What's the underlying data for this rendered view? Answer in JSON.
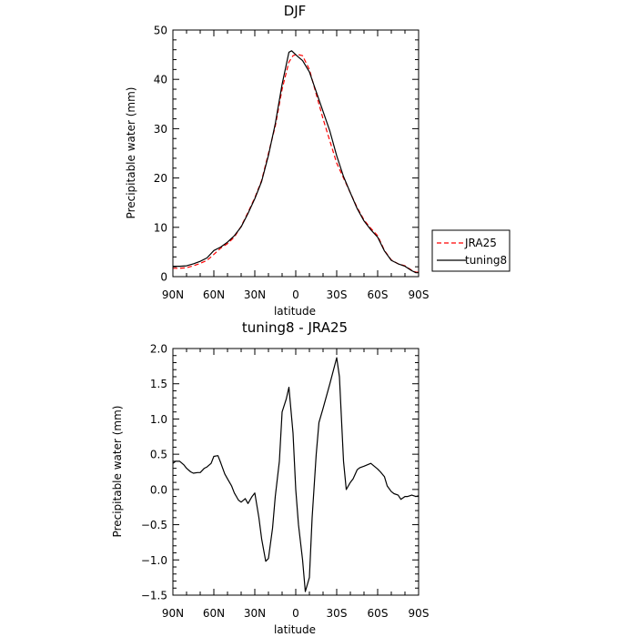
{
  "chart_data": [
    {
      "type": "line",
      "title": "DJF",
      "xlabel": "latitude",
      "ylabel": "Precipitable water (mm)",
      "xlim": [
        90,
        -90
      ],
      "ylim": [
        0,
        50
      ],
      "x_ticks": [
        90,
        60,
        30,
        0,
        -30,
        -60,
        -90
      ],
      "x_tick_labels": [
        "90N",
        "60N",
        "30N",
        "0",
        "30S",
        "60S",
        "90S"
      ],
      "y_ticks": [
        0,
        10,
        20,
        30,
        40,
        50
      ],
      "y_tick_labels": [
        "0",
        "10",
        "20",
        "30",
        "40",
        "50"
      ],
      "legend_position": "right",
      "series": [
        {
          "name": "JRA25",
          "color": "#ff0000",
          "dash": "dashed",
          "x": [
            90,
            85,
            80,
            75,
            70,
            65,
            60,
            55,
            50,
            45,
            40,
            35,
            30,
            25,
            20,
            15,
            10,
            5,
            2,
            0,
            -2,
            -5,
            -10,
            -15,
            -20,
            -25,
            -30,
            -35,
            -40,
            -45,
            -50,
            -55,
            -60,
            -65,
            -70,
            -75,
            -80,
            -85,
            -88,
            -90
          ],
          "y": [
            1.7,
            1.7,
            1.8,
            2.2,
            2.7,
            3.3,
            4.5,
            5.8,
            6.7,
            8.0,
            10.2,
            13.0,
            16.0,
            19.5,
            25.0,
            30.5,
            38.0,
            43.5,
            44.8,
            45.0,
            45.0,
            44.8,
            42.0,
            37.0,
            32.0,
            27.5,
            23.0,
            20.0,
            17.0,
            14.0,
            11.5,
            9.8,
            8.3,
            5.3,
            3.4,
            2.6,
            2.2,
            1.3,
            0.9,
            0.9
          ]
        },
        {
          "name": "tuning8",
          "color": "#000000",
          "dash": "solid",
          "x": [
            90,
            85,
            80,
            75,
            70,
            65,
            60,
            55,
            50,
            45,
            40,
            35,
            30,
            25,
            20,
            15,
            10,
            5,
            3,
            0,
            -2,
            -5,
            -10,
            -15,
            -20,
            -25,
            -30,
            -35,
            -40,
            -45,
            -50,
            -55,
            -60,
            -65,
            -70,
            -75,
            -80,
            -85,
            -88,
            -90
          ],
          "y": [
            2.1,
            2.1,
            2.2,
            2.6,
            3.1,
            3.8,
            5.3,
            6.0,
            7.0,
            8.3,
            10.1,
            12.8,
            15.8,
            19.3,
            24.6,
            31.0,
            39.0,
            45.5,
            45.8,
            45.0,
            44.5,
            43.8,
            41.5,
            37.5,
            33.5,
            29.5,
            24.5,
            20.3,
            17.0,
            13.8,
            11.3,
            9.5,
            8.0,
            5.2,
            3.3,
            2.6,
            2.1,
            1.2,
            0.8,
            0.8
          ]
        }
      ]
    },
    {
      "type": "line",
      "title": "tuning8 - JRA25",
      "xlabel": "latitude",
      "ylabel": "Precipitable water (mm)",
      "xlim": [
        90,
        -90
      ],
      "ylim": [
        -1.5,
        2.0
      ],
      "x_ticks": [
        90,
        60,
        30,
        0,
        -30,
        -60,
        -90
      ],
      "x_tick_labels": [
        "90N",
        "60N",
        "30N",
        "0",
        "30S",
        "60S",
        "90S"
      ],
      "y_ticks": [
        -1.5,
        -1.0,
        -0.5,
        0.0,
        0.5,
        1.0,
        1.5,
        2.0
      ],
      "y_tick_labels": [
        "−1.5",
        "−1.0",
        "−0.5",
        "0.0",
        "0.5",
        "1.0",
        "1.5",
        "2.0"
      ],
      "series": [
        {
          "color": "#000000",
          "dash": "solid",
          "x": [
            90,
            88,
            85,
            82,
            80,
            77,
            75,
            72,
            70,
            67,
            65,
            62,
            60,
            57,
            55,
            52,
            50,
            47,
            45,
            42,
            40,
            37,
            35,
            32,
            30,
            27,
            25,
            22,
            20,
            17,
            15,
            12,
            10,
            7,
            5,
            2,
            0,
            -2,
            -5,
            -7,
            -10,
            -12,
            -15,
            -17,
            -20,
            -25,
            -30,
            -32,
            -35,
            -37,
            -40,
            -42,
            -45,
            -47,
            -50,
            -55,
            -60,
            -62,
            -65,
            -67,
            -70,
            -72,
            -75,
            -77,
            -80,
            -82,
            -85,
            -88,
            -90
          ],
          "y": [
            0.37,
            0.4,
            0.4,
            0.35,
            0.3,
            0.25,
            0.23,
            0.24,
            0.24,
            0.3,
            0.32,
            0.37,
            0.47,
            0.48,
            0.38,
            0.22,
            0.15,
            0.05,
            -0.05,
            -0.15,
            -0.18,
            -0.13,
            -0.2,
            -0.1,
            -0.05,
            -0.4,
            -0.7,
            -1.02,
            -0.98,
            -0.55,
            -0.1,
            0.4,
            1.1,
            1.28,
            1.45,
            0.8,
            0.0,
            -0.5,
            -1.0,
            -1.45,
            -1.25,
            -0.4,
            0.5,
            0.95,
            1.15,
            1.5,
            1.87,
            1.6,
            0.4,
            0.0,
            0.1,
            0.15,
            0.28,
            0.31,
            0.33,
            0.37,
            0.29,
            0.25,
            0.18,
            0.05,
            -0.03,
            -0.06,
            -0.08,
            -0.14,
            -0.1,
            -0.1,
            -0.08,
            -0.1,
            -0.09
          ]
        }
      ]
    }
  ]
}
